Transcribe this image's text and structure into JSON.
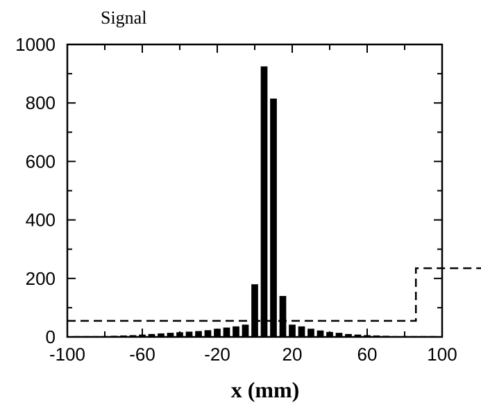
{
  "chart_data": {
    "type": "bar",
    "title": "",
    "xlabel": "x (mm)",
    "ylabel": "Signal",
    "xlim": [
      -100,
      100
    ],
    "ylim": [
      0,
      1000
    ],
    "xticks": [
      -100,
      -60,
      -20,
      20,
      60,
      100
    ],
    "yticks": [
      0,
      200,
      400,
      600,
      800,
      1000
    ],
    "grid": false,
    "legend": "none",
    "colors": {
      "bars": "#000000",
      "reference": "#000000",
      "axes": "#000000"
    },
    "series": [
      {
        "type": "bar",
        "x": [
          -95,
          -90,
          -85,
          -80,
          -75,
          -70,
          -65,
          -60,
          -55,
          -50,
          -45,
          -40,
          -35,
          -30,
          -25,
          -20,
          -15,
          -10,
          -5,
          0,
          5,
          10,
          15,
          20,
          25,
          30,
          35,
          40,
          45,
          50,
          55,
          60,
          65,
          70,
          75,
          80,
          85,
          90,
          95
        ],
        "values": [
          3,
          3,
          3,
          3,
          4,
          5,
          6,
          8,
          10,
          12,
          14,
          16,
          18,
          20,
          23,
          28,
          32,
          36,
          42,
          180,
          925,
          815,
          140,
          42,
          36,
          28,
          22,
          17,
          14,
          10,
          8,
          6,
          5,
          4,
          3,
          3,
          3,
          3,
          3
        ]
      },
      {
        "type": "step-line",
        "style": "dashed",
        "x": [
          -100,
          86,
          86,
          100
        ],
        "values": [
          55,
          55,
          235,
          235
        ]
      }
    ]
  }
}
